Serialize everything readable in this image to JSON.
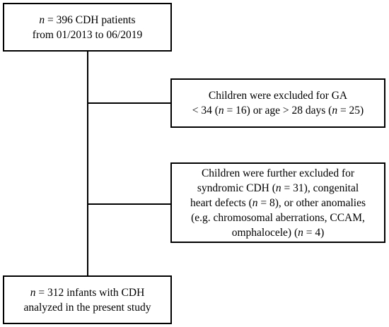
{
  "flowchart": {
    "start": {
      "pre": "",
      "var": "n",
      "rest": " = 396 CDH patients",
      "line2": "from 01/2013 to 06/2019"
    },
    "exclusion1": {
      "line1": "Children were excluded for GA",
      "l2a": "< 34 (",
      "l2var1": "n",
      "l2b": " = 16) or age > 28 days (",
      "l2var2": "n",
      "l2c": " = 25)"
    },
    "exclusion2": {
      "line1": "Children were further excluded for",
      "l2a": "syndromic CDH (",
      "l2var": "n",
      "l2b": " = 31), congenital",
      "l3a": "heart defects (",
      "l3var": "n",
      "l3b": " = 8), or other anomalies",
      "line4": "(e.g. chromosomal aberrations, CCAM,",
      "l5a": "omphalocele) (",
      "l5var": "n",
      "l5b": " = 4)"
    },
    "final": {
      "var": "n",
      "rest": " = 312 infants with CDH",
      "line2": "analyzed in the present study"
    }
  }
}
